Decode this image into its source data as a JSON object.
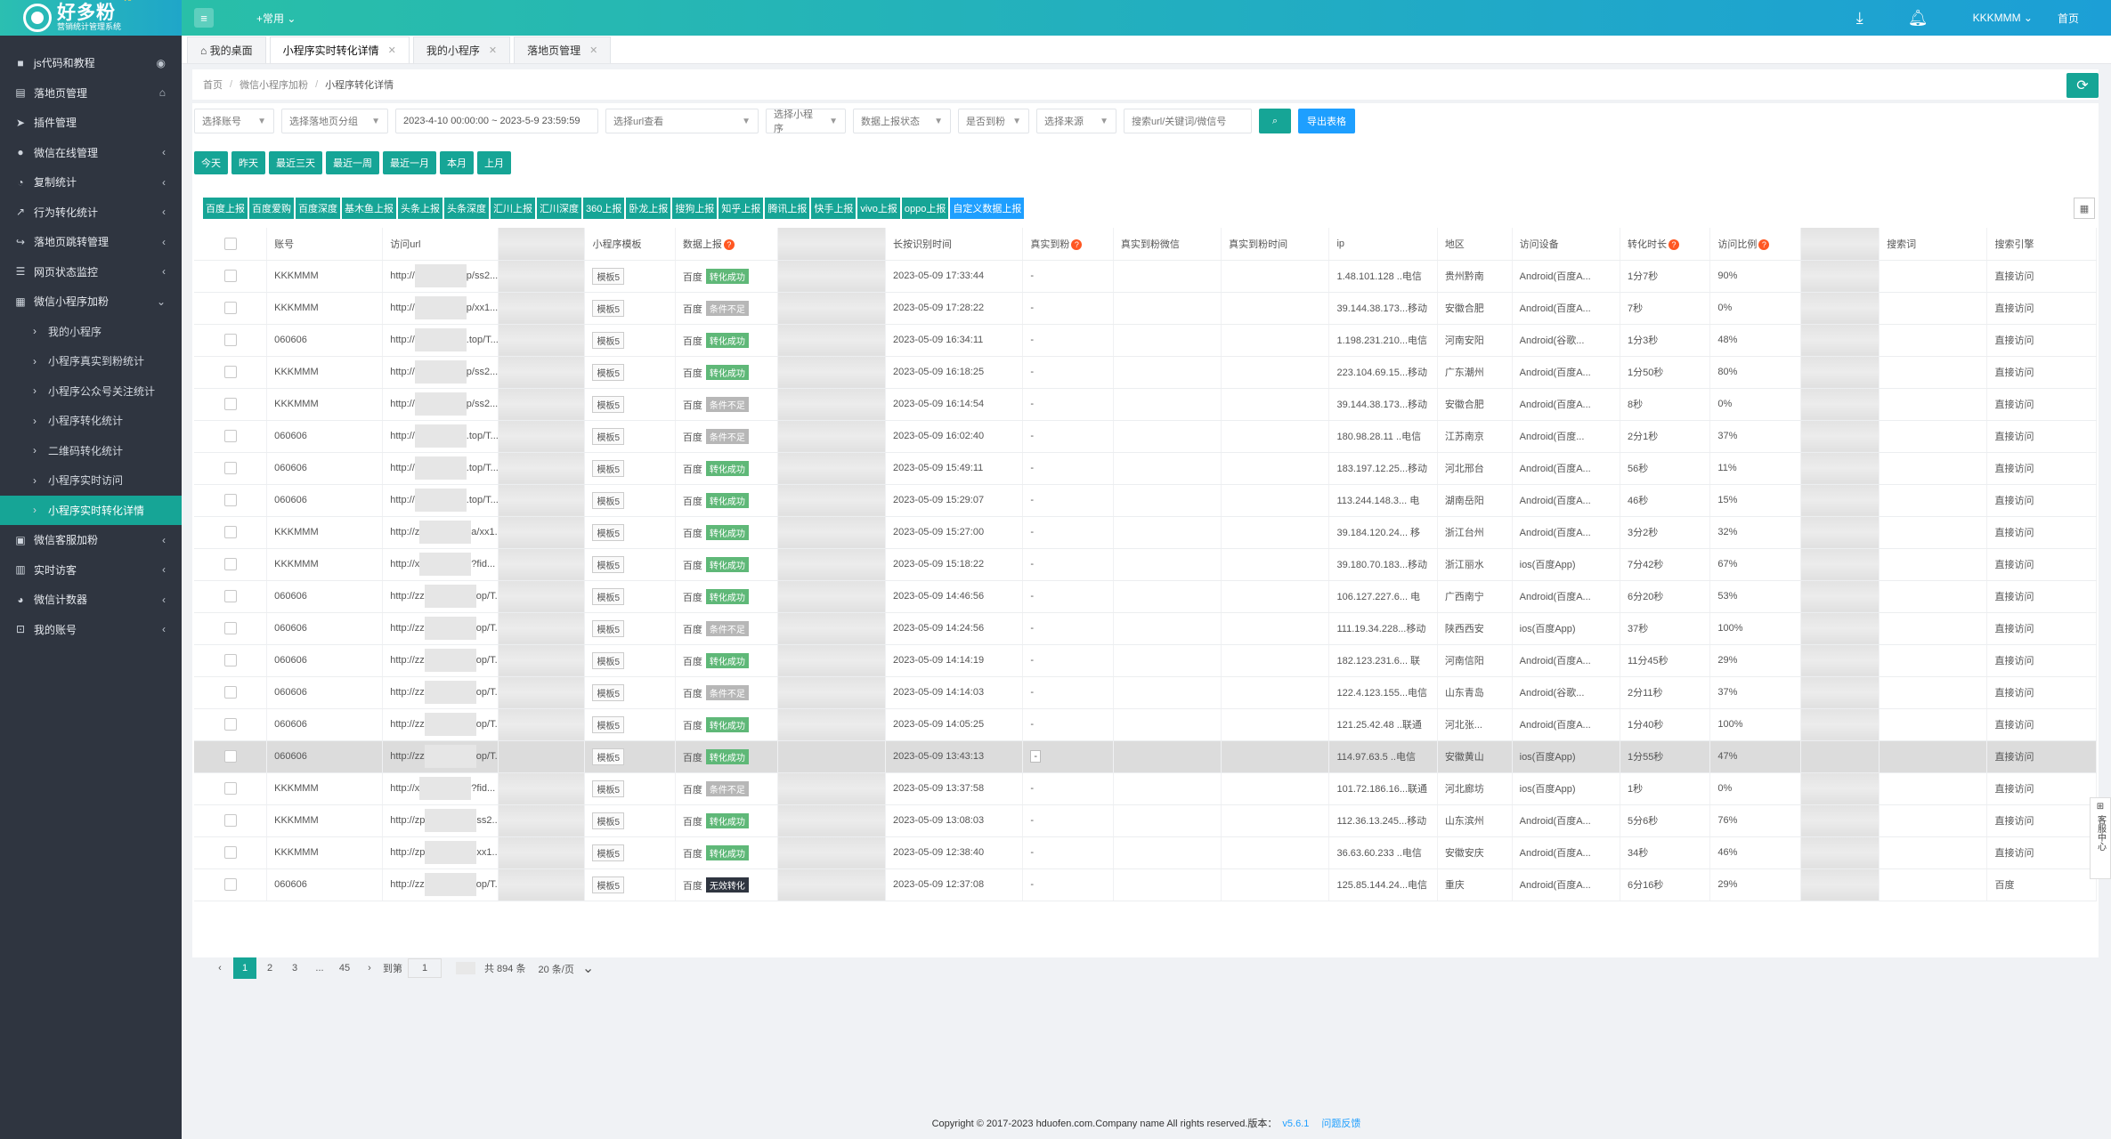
{
  "app": {
    "logo_title": "好多粉",
    "logo_sub": "营销统计管理系统",
    "logo_badge": "V5"
  },
  "topbar": {
    "menu_common": "+常用",
    "user": "KKKMMM",
    "home": "首页"
  },
  "sidebar": {
    "items": [
      {
        "label": "js代码和教程",
        "icon": "bookmark-icon",
        "right": "◉"
      },
      {
        "label": "落地页管理",
        "icon": "file-icon",
        "right": "⌂"
      },
      {
        "label": "插件管理",
        "icon": "plane-icon",
        "right": ""
      },
      {
        "label": "微信在线管理",
        "icon": "wechat-icon",
        "right": "‹"
      },
      {
        "label": "复制统计",
        "icon": "pie-icon",
        "right": "‹"
      },
      {
        "label": "行为转化统计",
        "icon": "chart-icon",
        "right": "‹"
      },
      {
        "label": "落地页跳转管理",
        "icon": "share-icon",
        "right": "‹"
      },
      {
        "label": "网页状态监控",
        "icon": "list-icon",
        "right": "‹"
      },
      {
        "label": "微信小程序加粉",
        "icon": "grid-icon",
        "right": "⌄"
      }
    ],
    "sub_items": [
      {
        "label": "我的小程序"
      },
      {
        "label": "小程序真实到粉统计"
      },
      {
        "label": "小程序公众号关注统计"
      },
      {
        "label": "小程序转化统计"
      },
      {
        "label": "二维码转化统计"
      },
      {
        "label": "小程序实时访问"
      },
      {
        "label": "小程序实时转化详情"
      }
    ],
    "bottom_items": [
      {
        "label": "微信客服加粉",
        "icon": "save-icon",
        "right": "‹"
      },
      {
        "label": "实时访客",
        "icon": "bar-icon",
        "right": "‹"
      },
      {
        "label": "微信计数器",
        "icon": "pie-icon",
        "right": "‹"
      },
      {
        "label": "我的账号",
        "icon": "lock-icon",
        "right": "‹"
      }
    ]
  },
  "tabs": [
    {
      "label": "我的桌面",
      "closable": false
    },
    {
      "label": "小程序实时转化详情",
      "closable": true
    },
    {
      "label": "我的小程序",
      "closable": true
    },
    {
      "label": "落地页管理",
      "closable": true
    }
  ],
  "breadcrumb": [
    "首页",
    "微信小程序加粉",
    "小程序转化详情"
  ],
  "filters": {
    "account": "选择账号",
    "group": "选择落地页分组",
    "date_range": "2023-4-10 00:00:00 ~ 2023-5-9 23:59:59",
    "url": "选择url查看",
    "miniprogram": "选择小程序",
    "report_status": "数据上报状态",
    "is_fan": "是否到粉",
    "source": "选择来源",
    "search_placeholder": "搜索url/关键词/微信号",
    "export": "导出表格"
  },
  "quick_dates": [
    "今天",
    "昨天",
    "最近三天",
    "最近一周",
    "最近一月",
    "本月",
    "上月"
  ],
  "report_buttons": [
    "百度上报",
    "百度爱购",
    "百度深度",
    "基木鱼上报",
    "头条上报",
    "头条深度",
    "汇川上报",
    "汇川深度",
    "360上报",
    "卧龙上报",
    "搜狗上报",
    "知乎上报",
    "腾讯上报",
    "快手上报",
    "vivo上报",
    "oppo上报",
    "自定义数据上报"
  ],
  "table": {
    "headers": [
      "账号",
      "访问url",
      "",
      "小程序模板",
      "数据上报",
      "",
      "长按识别时间",
      "真实到粉",
      "真实到粉微信",
      "真实到粉时间",
      "ip",
      "地区",
      "访问设备",
      "转化时长",
      "访问比例",
      "",
      "搜索词",
      "搜索引擎"
    ],
    "rows": [
      [
        "KKKMMM",
        "http://",
        "p/ss2...",
        "模板5",
        "百度",
        "转化成功",
        "2023-05-09 17:33:44",
        "-",
        "1.48.101.128 ..电信",
        "贵州黔南",
        "Android(百度A...",
        "1分7秒",
        "90%",
        "直接访问"
      ],
      [
        "KKKMMM",
        "http://",
        "p/xx1...",
        "模板5",
        "百度",
        "条件不足",
        "2023-05-09 17:28:22",
        "-",
        "39.144.38.173...移动",
        "安徽合肥",
        "Android(百度A...",
        "7秒",
        "0%",
        "直接访问"
      ],
      [
        "060606",
        "http://",
        ".top/T...",
        "模板5",
        "百度",
        "转化成功",
        "2023-05-09 16:34:11",
        "-",
        "1.198.231.210...电信",
        "河南安阳",
        "Android(谷歌...",
        "1分3秒",
        "48%",
        "直接访问"
      ],
      [
        "KKKMMM",
        "http://",
        "p/ss2...",
        "模板5",
        "百度",
        "转化成功",
        "2023-05-09 16:18:25",
        "-",
        "223.104.69.15...移动",
        "广东潮州",
        "Android(百度A...",
        "1分50秒",
        "80%",
        "直接访问"
      ],
      [
        "KKKMMM",
        "http://",
        "p/ss2...",
        "模板5",
        "百度",
        "条件不足",
        "2023-05-09 16:14:54",
        "-",
        "39.144.38.173...移动",
        "安徽合肥",
        "Android(百度A...",
        "8秒",
        "0%",
        "直接访问"
      ],
      [
        "060606",
        "http://",
        ".top/T...",
        "模板5",
        "百度",
        "条件不足",
        "2023-05-09 16:02:40",
        "-",
        "180.98.28.11 ..电信",
        "江苏南京",
        "Android(百度...",
        "2分1秒",
        "37%",
        "直接访问"
      ],
      [
        "060606",
        "http://",
        ".top/T...",
        "模板5",
        "百度",
        "转化成功",
        "2023-05-09 15:49:11",
        "-",
        "183.197.12.25...移动",
        "河北邢台",
        "Android(百度A...",
        "56秒",
        "11%",
        "直接访问"
      ],
      [
        "060606",
        "http://",
        ".top/T...",
        "模板5",
        "百度",
        "转化成功",
        "2023-05-09 15:29:07",
        "-",
        "113.244.148.3... 电",
        "湖南岳阳",
        "Android(百度A...",
        "46秒",
        "15%",
        "直接访问"
      ],
      [
        "KKKMMM",
        "http://z",
        "a/xx1...",
        "模板5",
        "百度",
        "转化成功",
        "2023-05-09 15:27:00",
        "-",
        "39.184.120.24... 移",
        "浙江台州",
        "Android(百度A...",
        "3分2秒",
        "32%",
        "直接访问"
      ],
      [
        "KKKMMM",
        "http://x",
        "?fid...",
        "模板5",
        "百度",
        "转化成功",
        "2023-05-09 15:18:22",
        "-",
        "39.180.70.183...移动",
        "浙江丽水",
        "ios(百度App)",
        "7分42秒",
        "67%",
        "直接访问"
      ],
      [
        "060606",
        "http://zz",
        "op/T...",
        "模板5",
        "百度",
        "转化成功",
        "2023-05-09 14:46:56",
        "-",
        "106.127.227.6... 电",
        "广西南宁",
        "Android(百度A...",
        "6分20秒",
        "53%",
        "直接访问"
      ],
      [
        "060606",
        "http://zz",
        "op/T...",
        "模板5",
        "百度",
        "条件不足",
        "2023-05-09 14:24:56",
        "-",
        "111.19.34.228...移动",
        "陕西西安",
        "ios(百度App)",
        "37秒",
        "100%",
        "直接访问"
      ],
      [
        "060606",
        "http://zz",
        "op/T...",
        "模板5",
        "百度",
        "转化成功",
        "2023-05-09 14:14:19",
        "-",
        "182.123.231.6... 联",
        "河南信阳",
        "Android(百度A...",
        "11分45秒",
        "29%",
        "直接访问"
      ],
      [
        "060606",
        "http://zz",
        "op/T...",
        "模板5",
        "百度",
        "条件不足",
        "2023-05-09 14:14:03",
        "-",
        "122.4.123.155...电信",
        "山东青岛",
        "Android(谷歌...",
        "2分11秒",
        "37%",
        "直接访问"
      ],
      [
        "060606",
        "http://zz",
        "op/T...",
        "模板5",
        "百度",
        "转化成功",
        "2023-05-09 14:05:25",
        "-",
        "121.25.42.48 ..联通",
        "河北张...",
        "Android(百度A...",
        "1分40秒",
        "100%",
        "直接访问"
      ],
      [
        "060606",
        "http://zz",
        "op/T...",
        "模板5",
        "百度",
        "转化成功",
        "2023-05-09 13:43:13",
        "-",
        "114.97.63.5 ..电信",
        "安徽黄山",
        "ios(百度App)",
        "1分55秒",
        "47%",
        "直接访问"
      ],
      [
        "KKKMMM",
        "http://x",
        "?fid...",
        "模板5",
        "百度",
        "条件不足",
        "2023-05-09 13:37:58",
        "-",
        "101.72.186.16...联通",
        "河北廊坊",
        "ios(百度App)",
        "1秒",
        "0%",
        "直接访问"
      ],
      [
        "KKKMMM",
        "http://zp",
        "ss2...",
        "模板5",
        "百度",
        "转化成功",
        "2023-05-09 13:08:03",
        "-",
        "112.36.13.245...移动",
        "山东滨州",
        "Android(百度A...",
        "5分6秒",
        "76%",
        "直接访问"
      ],
      [
        "KKKMMM",
        "http://zp",
        "xx1...",
        "模板5",
        "百度",
        "转化成功",
        "2023-05-09 12:38:40",
        "-",
        "36.63.60.233 ..电信",
        "安徽安庆",
        "Android(百度A...",
        "34秒",
        "46%",
        "直接访问"
      ],
      [
        "060606",
        "http://zz",
        "op/T...",
        "模板5",
        "百度",
        "无效转化",
        "2023-05-09 12:37:08",
        "-",
        "125.85.144.24...电信",
        "重庆",
        "Android(百度A...",
        "6分16秒",
        "29%",
        "百度"
      ]
    ]
  },
  "pager": {
    "pages": [
      "1",
      "2",
      "3",
      "...",
      "45"
    ],
    "goto_label": "到第",
    "goto_value": "1",
    "total": "共 894 条",
    "per_page": "20 条/页"
  },
  "footer": {
    "copyright": "Copyright © 2017-2023 hduofen.com.Company name All rights reserved.版本：",
    "version": "v5.6.1",
    "feedback": "问题反馈"
  },
  "float_panel": {
    "label": "客服中心"
  }
}
